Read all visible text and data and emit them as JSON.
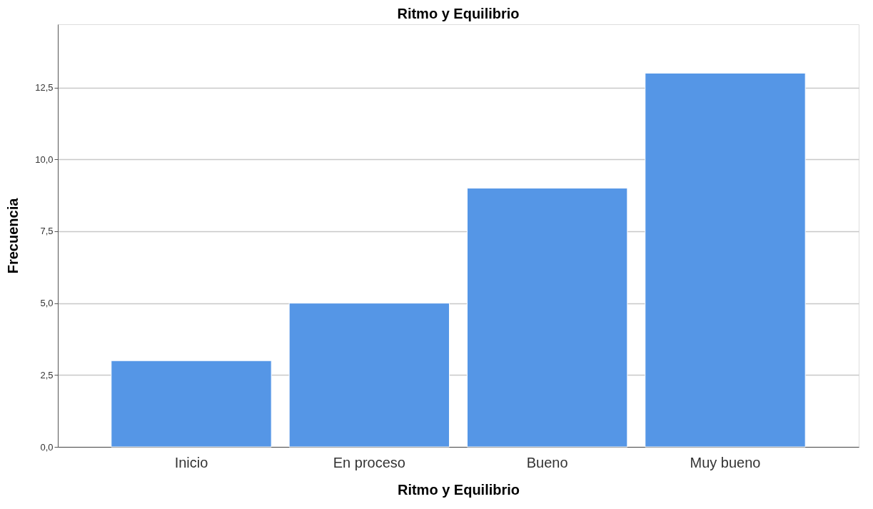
{
  "chart_data": {
    "type": "bar",
    "title": "Ritmo y Equilibrio",
    "xlabel": "Ritmo y Equilibrio",
    "ylabel": "Frecuencia",
    "categories": [
      "Inicio",
      "En proceso",
      "Bueno",
      "Muy bueno"
    ],
    "values": [
      3,
      5,
      9,
      13
    ],
    "color": "#5596e6",
    "ylim": [
      0,
      14.7
    ],
    "yticks": [
      {
        "value": 0,
        "label": "0,0"
      },
      {
        "value": 2.5,
        "label": "2,5"
      },
      {
        "value": 5,
        "label": "5,0"
      },
      {
        "value": 7.5,
        "label": "7,5"
      },
      {
        "value": 10,
        "label": "10,0"
      },
      {
        "value": 12.5,
        "label": "12,5"
      }
    ],
    "grid": "y"
  }
}
